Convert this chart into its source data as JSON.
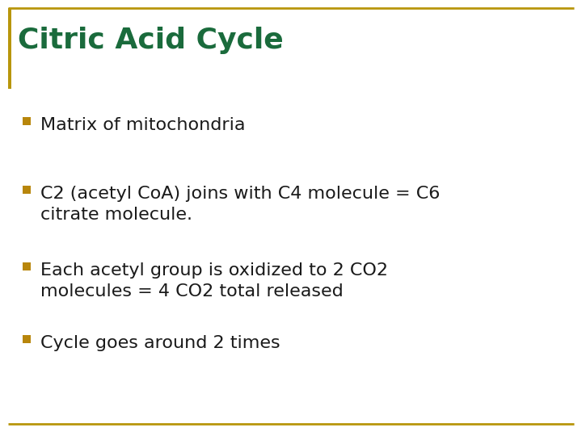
{
  "title": "Citric Acid Cycle",
  "title_color": "#1a6b3c",
  "title_fontsize": 26,
  "background_color": "#ffffff",
  "border_top_color": "#b8960c",
  "border_bottom_color": "#b8960c",
  "left_bar_color": "#b8960c",
  "bullet_color": "#b8860b",
  "bullet_items": [
    "Matrix of mitochondria",
    "C2 (acetyl CoA) joins with C4 molecule = C6\ncitrate molecule.",
    "Each acetyl group is oxidized to 2 CO2\nmolecules = 4 CO2 total released",
    "Cycle goes around 2 times"
  ],
  "text_color": "#1a1a1a",
  "text_fontsize": 16
}
